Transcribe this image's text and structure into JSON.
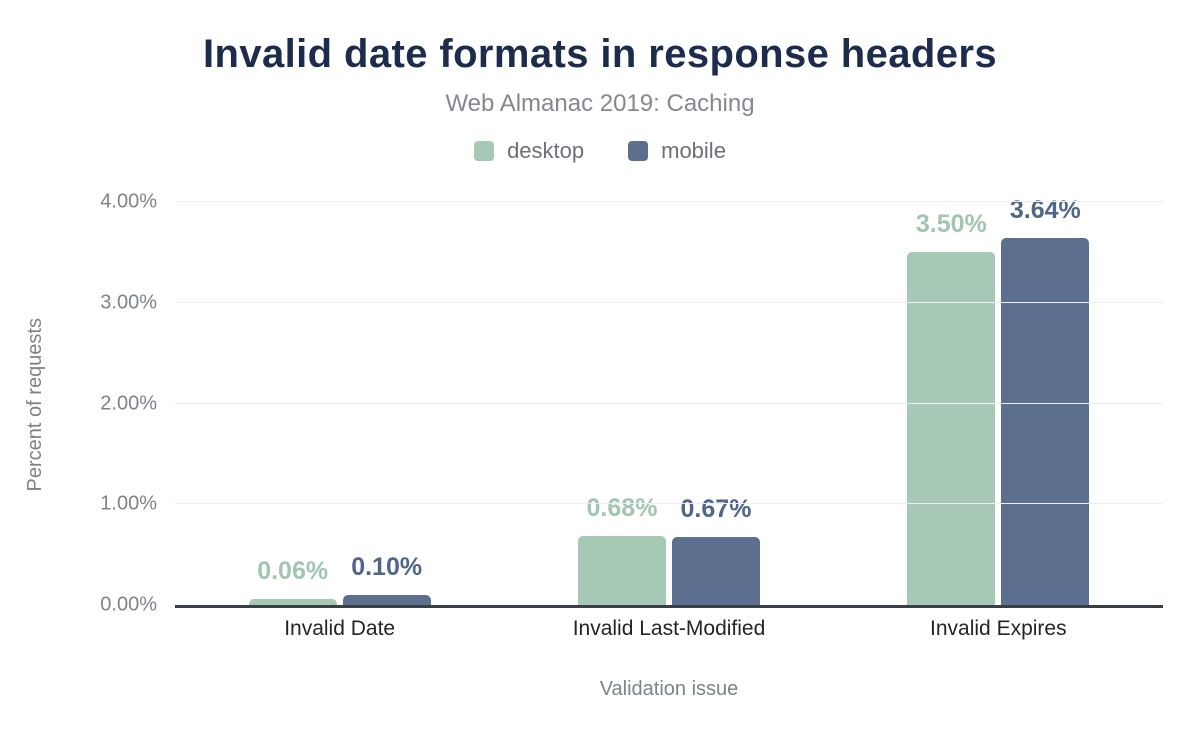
{
  "title": "Invalid date formats in response headers",
  "subtitle": "Web Almanac 2019: Caching",
  "colors": {
    "title": "#1d2c4c",
    "desktop": "#a6c9b6",
    "mobile": "#5d6f8e",
    "desktop_label": "#a0c6b1",
    "mobile_label": "#50658a",
    "axis_text": "#7d838a",
    "category_text": "#212529",
    "gridline": "#eceef0",
    "baseline": "#3a3f45"
  },
  "chart_data": {
    "type": "bar",
    "title": "Invalid date formats in response headers",
    "subtitle": "Web Almanac 2019: Caching",
    "categories": [
      "Invalid Date",
      "Invalid Last-Modified",
      "Invalid Expires"
    ],
    "series": [
      {
        "name": "desktop",
        "color": "#a6c9b6",
        "label_color": "#a0c6b1",
        "values": [
          0.06,
          0.68,
          3.5
        ],
        "labels": [
          "0.06%",
          "0.68%",
          "3.50%"
        ]
      },
      {
        "name": "mobile",
        "color": "#5d6f8e",
        "label_color": "#50658a",
        "values": [
          0.1,
          0.67,
          3.64
        ],
        "labels": [
          "0.10%",
          "0.67%",
          "3.64%"
        ]
      }
    ],
    "xlabel": "Validation issue",
    "ylabel": "Percent of requests",
    "ylim": [
      0,
      4
    ],
    "yticks": [
      {
        "value": 0,
        "label": "0.00%"
      },
      {
        "value": 1,
        "label": "1.00%"
      },
      {
        "value": 2,
        "label": "2.00%"
      },
      {
        "value": 3,
        "label": "3.00%"
      },
      {
        "value": 4,
        "label": "4.00%"
      }
    ],
    "grid": true,
    "legend_position": "top"
  }
}
